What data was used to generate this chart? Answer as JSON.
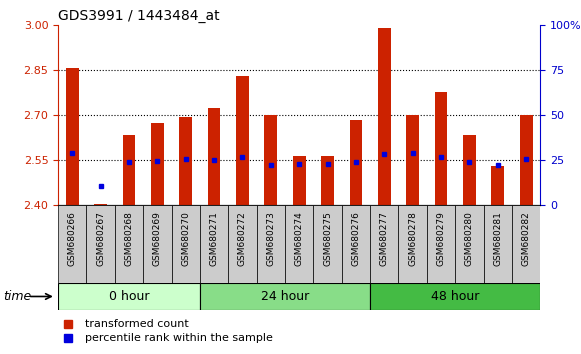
{
  "title": "GDS3991 / 1443484_at",
  "samples": [
    "GSM680266",
    "GSM680267",
    "GSM680268",
    "GSM680269",
    "GSM680270",
    "GSM680271",
    "GSM680272",
    "GSM680273",
    "GSM680274",
    "GSM680275",
    "GSM680276",
    "GSM680277",
    "GSM680278",
    "GSM680279",
    "GSM680280",
    "GSM680281",
    "GSM680282"
  ],
  "bar_heights": [
    2.855,
    2.405,
    2.635,
    2.675,
    2.695,
    2.725,
    2.83,
    2.7,
    2.565,
    2.565,
    2.685,
    2.99,
    2.7,
    2.775,
    2.635,
    2.53,
    2.7
  ],
  "blue_dot_values": [
    2.575,
    2.465,
    2.545,
    2.548,
    2.555,
    2.552,
    2.56,
    2.535,
    2.538,
    2.537,
    2.543,
    2.572,
    2.575,
    2.56,
    2.545,
    2.535,
    2.555
  ],
  "groups": [
    {
      "label": "0 hour",
      "start": 0,
      "end": 5,
      "color": "#ccffcc"
    },
    {
      "label": "24 hour",
      "start": 5,
      "end": 11,
      "color": "#88dd88"
    },
    {
      "label": "48 hour",
      "start": 11,
      "end": 17,
      "color": "#44bb44"
    }
  ],
  "ylim_left": [
    2.4,
    3.0
  ],
  "ylim_right": [
    0,
    100
  ],
  "yticks_left": [
    2.4,
    2.55,
    2.7,
    2.85,
    3.0
  ],
  "yticks_right": [
    0,
    25,
    50,
    75,
    100
  ],
  "hlines": [
    2.55,
    2.7,
    2.85
  ],
  "bar_color": "#cc2200",
  "dot_color": "#0000dd",
  "bar_bottom": 2.4,
  "bar_width": 0.45,
  "right_axis_color": "#0000cc",
  "left_axis_color": "#cc2200",
  "plot_bg_color": "#ffffff",
  "tick_bg_color": "#cccccc",
  "legend_items": [
    {
      "label": "transformed count",
      "color": "#cc2200"
    },
    {
      "label": "percentile rank within the sample",
      "color": "#0000dd"
    }
  ]
}
